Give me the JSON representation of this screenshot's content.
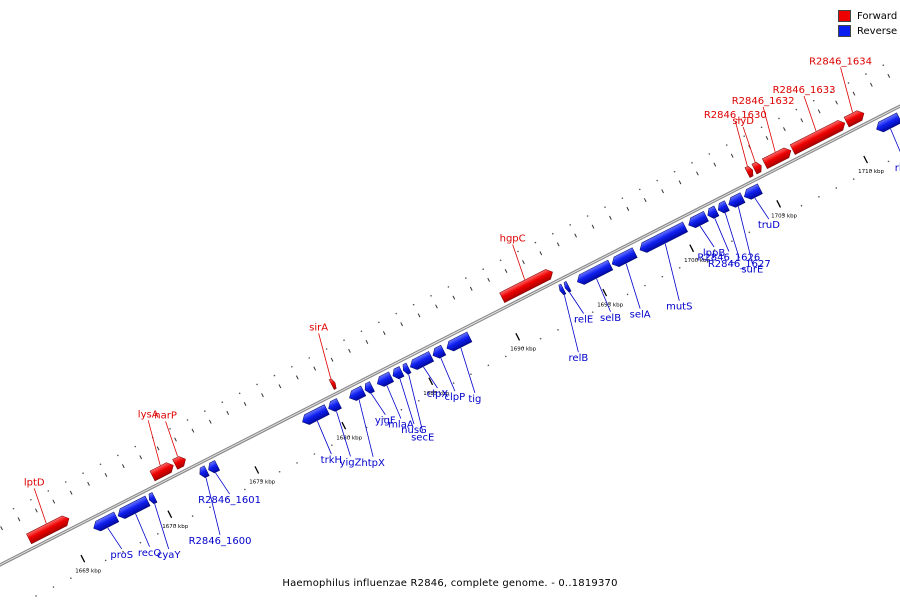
{
  "legend": {
    "forward_label": "Forward",
    "reverse_label": "Reverse",
    "forward_color": "#ee0000",
    "reverse_color": "#0a1ef0"
  },
  "caption": "Haemophilus influenzae R2846, complete genome. - 0..1819370",
  "ticks": [
    {
      "kbp": 1665,
      "label": "1665 kbp"
    },
    {
      "kbp": 1670,
      "label": "1670 kbp"
    },
    {
      "kbp": 1675,
      "label": "1675 kbp"
    },
    {
      "kbp": 1680,
      "label": "1680 kbp"
    },
    {
      "kbp": 1685,
      "label": "1685 kbp"
    },
    {
      "kbp": 1690,
      "label": "1690 kbp"
    },
    {
      "kbp": 1695,
      "label": "1695 kbp"
    },
    {
      "kbp": 1700,
      "label": "1700 kbp"
    },
    {
      "kbp": 1705,
      "label": "1705 kbp"
    },
    {
      "kbp": 1710,
      "label": "1710 kbp"
    }
  ],
  "genes": [
    {
      "name": "lptD",
      "strand": "forward",
      "start": 1663.0,
      "end": 1665.3
    },
    {
      "name": "proS",
      "strand": "reverse",
      "start": 1666.2,
      "end": 1667.5
    },
    {
      "name": "recQ",
      "strand": "reverse",
      "start": 1667.6,
      "end": 1669.3
    },
    {
      "name": "cyaY",
      "strand": "reverse",
      "start": 1669.4,
      "end": 1669.7
    },
    {
      "name": "lysA",
      "strand": "forward",
      "start": 1670.1,
      "end": 1671.3
    },
    {
      "name": "narP",
      "strand": "forward",
      "start": 1671.4,
      "end": 1672.0
    },
    {
      "name": "R2846_1600",
      "strand": "reverse",
      "start": 1672.3,
      "end": 1672.7
    },
    {
      "name": "R2846_1601",
      "strand": "reverse",
      "start": 1672.8,
      "end": 1673.3
    },
    {
      "name": "trkH",
      "strand": "reverse",
      "start": 1678.2,
      "end": 1679.6
    },
    {
      "name": "yigZ",
      "strand": "reverse",
      "start": 1679.7,
      "end": 1680.3
    },
    {
      "name": "htpX",
      "strand": "reverse",
      "start": 1680.9,
      "end": 1681.7
    },
    {
      "name": "yjgF",
      "strand": "reverse",
      "start": 1681.8,
      "end": 1682.2
    },
    {
      "name": "mlaA",
      "strand": "reverse",
      "start": 1682.5,
      "end": 1683.3
    },
    {
      "name": "nusG",
      "strand": "reverse",
      "start": 1683.4,
      "end": 1683.9
    },
    {
      "name": "secE",
      "strand": "reverse",
      "start": 1684.0,
      "end": 1684.3
    },
    {
      "name": "sirA",
      "strand": "forward",
      "start": 1680.4,
      "end": 1680.6
    },
    {
      "name": "clpX",
      "strand": "reverse",
      "start": 1684.4,
      "end": 1685.6
    },
    {
      "name": "clpP",
      "strand": "reverse",
      "start": 1685.7,
      "end": 1686.3
    },
    {
      "name": "tig",
      "strand": "reverse",
      "start": 1686.5,
      "end": 1687.8
    },
    {
      "name": "hgpC",
      "strand": "forward",
      "start": 1690.2,
      "end": 1693.1
    },
    {
      "name": "relB",
      "strand": "reverse",
      "start": 1693.0,
      "end": 1693.2
    },
    {
      "name": "relE",
      "strand": "reverse",
      "start": 1693.3,
      "end": 1693.5
    },
    {
      "name": "selB",
      "strand": "reverse",
      "start": 1694.0,
      "end": 1695.9
    },
    {
      "name": "selA",
      "strand": "reverse",
      "start": 1696.0,
      "end": 1697.3
    },
    {
      "name": "mutS",
      "strand": "reverse",
      "start": 1697.6,
      "end": 1700.2
    },
    {
      "name": "lppB",
      "strand": "reverse",
      "start": 1700.4,
      "end": 1701.4
    },
    {
      "name": "R2846_1626",
      "strand": "reverse",
      "start": 1701.5,
      "end": 1702.0
    },
    {
      "name": "R2846_1627",
      "strand": "reverse",
      "start": 1702.1,
      "end": 1702.6
    },
    {
      "name": "surE",
      "strand": "reverse",
      "start": 1702.7,
      "end": 1703.5
    },
    {
      "name": "truD",
      "strand": "reverse",
      "start": 1703.6,
      "end": 1704.5
    },
    {
      "name": "R2846_1630",
      "strand": "forward",
      "start": 1704.3,
      "end": 1704.6
    },
    {
      "name": "slyD",
      "strand": "forward",
      "start": 1704.7,
      "end": 1705.1
    },
    {
      "name": "R2846_1632",
      "strand": "forward",
      "start": 1705.3,
      "end": 1706.8
    },
    {
      "name": "R2846_1633",
      "strand": "forward",
      "start": 1706.9,
      "end": 1709.9
    },
    {
      "name": "R2846_1634",
      "strand": "forward",
      "start": 1710.0,
      "end": 1711.0
    },
    {
      "name": "rluE",
      "strand": "reverse",
      "start": 1711.2,
      "end": 1712.5
    }
  ]
}
